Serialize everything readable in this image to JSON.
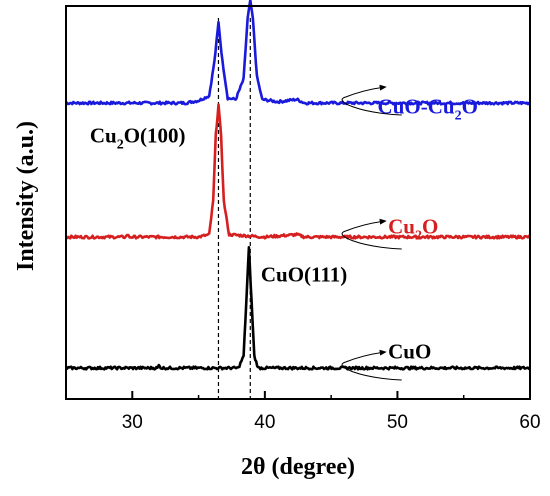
{
  "chart_data": {
    "type": "line",
    "xlabel": "2θ (degree)",
    "ylabel": "Intensity (a.u.)",
    "xlim": [
      25,
      60
    ],
    "xticks": [
      30,
      40,
      50,
      60
    ],
    "xtick_labels": [
      "30",
      "40",
      "50",
      "60"
    ],
    "y_ticks_shown": false,
    "legend": "none",
    "reference_lines_2theta": [
      36.5,
      38.9
    ],
    "series": [
      {
        "name": "CuO-Cu2O",
        "color": "#1a1adc",
        "offset": 2,
        "points": [
          [
            25,
            0
          ],
          [
            30,
            0
          ],
          [
            34,
            0
          ],
          [
            35,
            0.02
          ],
          [
            35.8,
            0.06
          ],
          [
            36.2,
            0.35
          ],
          [
            36.5,
            0.67
          ],
          [
            36.8,
            0.35
          ],
          [
            37.2,
            0.04
          ],
          [
            37.8,
            0.03
          ],
          [
            38.4,
            0.2
          ],
          [
            38.7,
            0.7
          ],
          [
            38.9,
            0.85
          ],
          [
            39.1,
            0.7
          ],
          [
            39.4,
            0.22
          ],
          [
            39.8,
            0.03
          ],
          [
            41,
            0.01
          ],
          [
            42.4,
            0.03
          ],
          [
            43,
            0
          ],
          [
            50,
            0
          ],
          [
            60,
            0
          ]
        ]
      },
      {
        "name": "Cu2O",
        "color": "#d62020",
        "offset": 1,
        "points": [
          [
            25,
            0
          ],
          [
            29.5,
            0
          ],
          [
            29.6,
            0.02
          ],
          [
            29.8,
            0
          ],
          [
            35,
            0
          ],
          [
            35.8,
            0.02
          ],
          [
            36.1,
            0.3
          ],
          [
            36.3,
            0.85
          ],
          [
            36.5,
            1.1
          ],
          [
            36.7,
            0.85
          ],
          [
            36.9,
            0.3
          ],
          [
            37.3,
            0.02
          ],
          [
            40,
            0
          ],
          [
            42.4,
            0.02
          ],
          [
            43,
            0
          ],
          [
            60,
            0
          ]
        ]
      },
      {
        "name": "CuO",
        "color": "#000000",
        "offset": 0,
        "points": [
          [
            25,
            0
          ],
          [
            31.9,
            0
          ],
          [
            32,
            0.02
          ],
          [
            32.2,
            0
          ],
          [
            38,
            0
          ],
          [
            38.4,
            0.1
          ],
          [
            38.6,
            0.55
          ],
          [
            38.8,
            1.0
          ],
          [
            39.0,
            0.55
          ],
          [
            39.2,
            0.1
          ],
          [
            39.5,
            0
          ],
          [
            60,
            0
          ]
        ]
      }
    ],
    "annotations": [
      {
        "text": "CuO-Cu",
        "sub": "2",
        "tail": "O",
        "color": "#1a1adc",
        "x": 48.5,
        "level": 2.12
      },
      {
        "text": "Cu",
        "sub": "2",
        "tail": "O(100)",
        "color": "#000000",
        "x": 26.8,
        "level": 1.88
      },
      {
        "text": "Cu",
        "sub": "2",
        "tail": "O",
        "color": "#d62020",
        "x": 49.3,
        "level": 1.12
      },
      {
        "text": "CuO(111)",
        "sub": "",
        "tail": "",
        "color": "#000000",
        "x": 39.7,
        "level": 0.72
      },
      {
        "text": "CuO",
        "sub": "",
        "tail": "",
        "color": "#000000",
        "x": 49.3,
        "level": 0.08
      }
    ]
  }
}
